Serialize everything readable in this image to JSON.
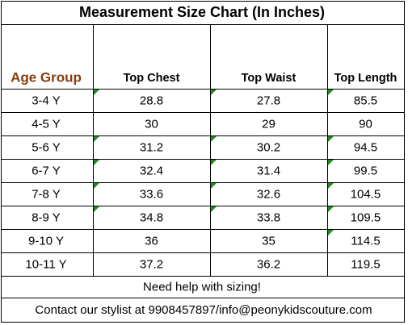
{
  "title": "Measurement Size Chart  (In Inches)",
  "table": {
    "columns": [
      "Age Group",
      "Top  Chest",
      "Top Waist",
      "Top Length"
    ],
    "rows": [
      [
        "3-4 Y",
        28.8,
        27.8,
        85.5
      ],
      [
        "4-5 Y",
        30,
        29,
        90
      ],
      [
        "5-6 Y",
        31.2,
        30.2,
        94.5
      ],
      [
        "6-7 Y",
        32.4,
        31.4,
        99.5
      ],
      [
        "7-8 Y",
        33.6,
        32.6,
        104.5
      ],
      [
        "8-9 Y",
        34.8,
        33.8,
        109.5
      ],
      [
        "9-10 Y",
        36,
        35,
        114.5
      ],
      [
        "10-11 Y",
        37.2,
        36.2,
        119.5
      ]
    ]
  },
  "footer": {
    "note": "Need help with sizing!",
    "contact": "Contact our stylist at 9908457897/info@peonykidscouture.com"
  }
}
